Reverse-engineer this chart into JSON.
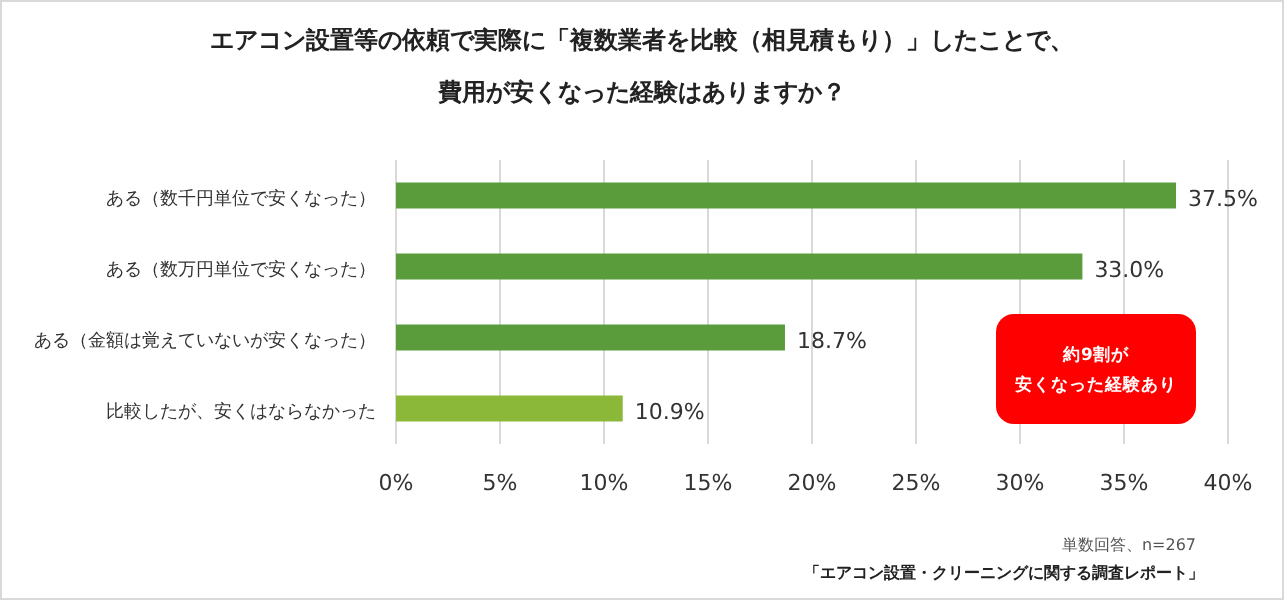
{
  "chart_data": {
    "type": "bar",
    "orientation": "horizontal",
    "title": "エアコン設置等の依頼で実際に「複数業者を比較（相見積もり）」したことで、",
    "subtitle": "費用が安くなった経験はありますか？",
    "categories": [
      "ある（数千円単位で安くなった）",
      "ある（数万円単位で安くなった）",
      "ある（金額は覚えていないが安くなった）",
      "比較したが、安くはならなかった"
    ],
    "values": [
      37.5,
      33.0,
      18.7,
      10.9
    ],
    "colors": [
      "#5a9b3c",
      "#5a9b3c",
      "#5a9b3c",
      "#8cb83a"
    ],
    "value_labels": [
      "37.5%",
      "33.0%",
      "18.7%",
      "10.9%"
    ],
    "xlim": [
      0,
      40
    ],
    "xticks": [
      {
        "value": 0,
        "label": "0%"
      },
      {
        "value": 5,
        "label": "5%"
      },
      {
        "value": 10,
        "label": "10%"
      },
      {
        "value": 15,
        "label": "15%"
      },
      {
        "value": 20,
        "label": "20%"
      },
      {
        "value": 25,
        "label": "25%"
      },
      {
        "value": 30,
        "label": "30%"
      },
      {
        "value": 35,
        "label": "35%"
      },
      {
        "value": 40,
        "label": "40%"
      }
    ],
    "grid": "x",
    "annotations": [
      "約9割が",
      "安くなった経験あり",
      "単数回答、n=267",
      "「エアコン設置・クリーニングに関する調査レポート」"
    ]
  }
}
